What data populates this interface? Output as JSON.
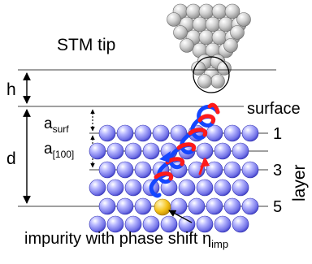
{
  "title": "STM tip",
  "labels": {
    "h": "h",
    "d": "d",
    "surface": "surface",
    "a_surf_main": "a",
    "a_surf_sub": "surf",
    "a100_main": "a",
    "a100_sub": "[100]",
    "layer": "layer"
  },
  "layer_numbers": [
    "1",
    "3",
    "5"
  ],
  "impurity_caption_main": "impurity with phase shift η",
  "impurity_caption_sub": "imp",
  "colors": {
    "atom": "#8c8cf2",
    "atom_dark": "#2f2fb0",
    "impurity": "#f4c21a",
    "tip_atom": "#c8c8c8",
    "wave_blue": "#1446ff",
    "wave_red": "#ff1a1a"
  }
}
